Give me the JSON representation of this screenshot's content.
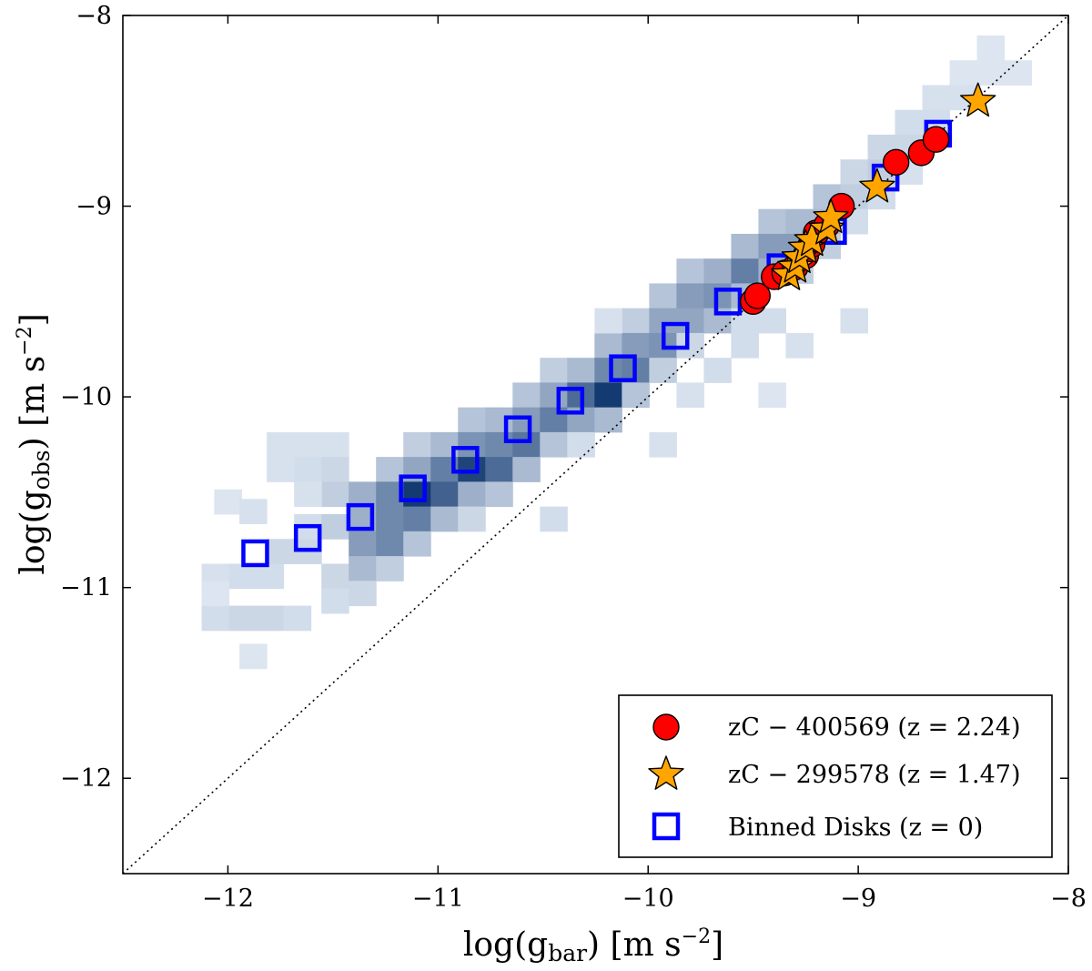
{
  "chart_data": {
    "type": "scatter",
    "xlabel": "log(g_bar) [m s^-2]",
    "ylabel": "log(g_obs) [m s^-2]",
    "xlim": [
      -12.5,
      -8
    ],
    "ylim": [
      -12.5,
      -8
    ],
    "xticks": [
      -12,
      -11,
      -10,
      -9,
      -8
    ],
    "yticks": [
      -12,
      -11,
      -10,
      -9,
      -8
    ],
    "x_tick_labels": [
      "−12",
      "−11",
      "−10",
      "−9",
      "−8"
    ],
    "y_tick_labels": [
      "−12",
      "−11",
      "−10",
      "−9",
      "−8"
    ],
    "one_to_one_line": true,
    "grid": false,
    "legend_position": "bottom-right",
    "heatmap": {
      "bin_size": 0.13,
      "color_light": "#eef5fc",
      "color_dark": "#08306b",
      "cells": [
        [
          -12.06,
          -10.94,
          0.1
        ],
        [
          -12.06,
          -11.16,
          0.12
        ],
        [
          -11.93,
          -10.94,
          0.12
        ],
        [
          -11.93,
          -11.16,
          0.15
        ],
        [
          -11.8,
          -10.94,
          0.12
        ],
        [
          -11.8,
          -11.16,
          0.15
        ],
        [
          -11.67,
          -11.16,
          0.12
        ],
        [
          -12.0,
          -10.55,
          0.08
        ],
        [
          -11.88,
          -10.6,
          0.1
        ],
        [
          -11.75,
          -10.25,
          0.1
        ],
        [
          -11.75,
          -10.38,
          0.1
        ],
        [
          -11.62,
          -10.25,
          0.1
        ],
        [
          -11.62,
          -10.38,
          0.12
        ],
        [
          -11.49,
          -10.25,
          0.1
        ],
        [
          -11.49,
          -10.38,
          0.15
        ],
        [
          -11.49,
          -10.51,
          0.2
        ],
        [
          -11.75,
          -10.81,
          0.15
        ],
        [
          -11.62,
          -10.81,
          0.15
        ],
        [
          -11.62,
          -10.68,
          0.12
        ],
        [
          -11.49,
          -10.68,
          0.2
        ],
        [
          -11.49,
          -10.94,
          0.15
        ],
        [
          -11.49,
          -11.07,
          0.12
        ],
        [
          -11.36,
          -10.51,
          0.35
        ],
        [
          -11.36,
          -10.64,
          0.35
        ],
        [
          -11.36,
          -10.77,
          0.45
        ],
        [
          -11.36,
          -10.9,
          0.3
        ],
        [
          -11.36,
          -11.03,
          0.15
        ],
        [
          -11.23,
          -10.38,
          0.25
        ],
        [
          -11.23,
          -10.51,
          0.55
        ],
        [
          -11.23,
          -10.64,
          0.55
        ],
        [
          -11.23,
          -10.77,
          0.55
        ],
        [
          -11.23,
          -10.9,
          0.2
        ],
        [
          -11.1,
          -10.25,
          0.2
        ],
        [
          -11.1,
          -10.38,
          0.4
        ],
        [
          -11.1,
          -10.51,
          0.95
        ],
        [
          -11.1,
          -10.64,
          0.6
        ],
        [
          -11.1,
          -10.77,
          0.25
        ],
        [
          -10.97,
          -10.25,
          0.3
        ],
        [
          -10.97,
          -10.38,
          0.6
        ],
        [
          -10.97,
          -10.51,
          0.75
        ],
        [
          -10.97,
          -10.64,
          0.3
        ],
        [
          -10.84,
          -10.12,
          0.25
        ],
        [
          -10.84,
          -10.25,
          0.5
        ],
        [
          -10.84,
          -10.38,
          0.9
        ],
        [
          -10.84,
          -10.51,
          0.35
        ],
        [
          -10.84,
          -10.64,
          0.15
        ],
        [
          -10.71,
          -10.12,
          0.3
        ],
        [
          -10.71,
          -10.25,
          0.55
        ],
        [
          -10.71,
          -10.38,
          0.7
        ],
        [
          -10.71,
          -10.51,
          0.25
        ],
        [
          -10.58,
          -9.99,
          0.25
        ],
        [
          -10.58,
          -10.12,
          0.45
        ],
        [
          -10.58,
          -10.25,
          0.65
        ],
        [
          -10.58,
          -10.38,
          0.3
        ],
        [
          -10.45,
          -9.86,
          0.2
        ],
        [
          -10.45,
          -9.99,
          0.4
        ],
        [
          -10.45,
          -10.12,
          0.6
        ],
        [
          -10.45,
          -10.25,
          0.25
        ],
        [
          -10.32,
          -9.86,
          0.3
        ],
        [
          -10.32,
          -9.99,
          0.7
        ],
        [
          -10.32,
          -10.12,
          0.4
        ],
        [
          -10.32,
          -10.25,
          0.12
        ],
        [
          -10.19,
          -9.73,
          0.3
        ],
        [
          -10.19,
          -9.86,
          0.55
        ],
        [
          -10.19,
          -9.99,
          0.95
        ],
        [
          -10.19,
          -10.12,
          0.3
        ],
        [
          -10.06,
          -9.6,
          0.2
        ],
        [
          -10.06,
          -9.73,
          0.45
        ],
        [
          -10.06,
          -9.86,
          0.6
        ],
        [
          -10.06,
          -9.99,
          0.25
        ],
        [
          -9.93,
          -9.47,
          0.25
        ],
        [
          -9.93,
          -9.6,
          0.4
        ],
        [
          -9.93,
          -9.73,
          0.5
        ],
        [
          -9.93,
          -9.86,
          0.2
        ],
        [
          -9.8,
          -9.34,
          0.25
        ],
        [
          -9.8,
          -9.47,
          0.45
        ],
        [
          -9.8,
          -9.6,
          0.4
        ],
        [
          -9.8,
          -9.73,
          0.15
        ],
        [
          -9.67,
          -9.34,
          0.35
        ],
        [
          -9.67,
          -9.47,
          0.5
        ],
        [
          -9.67,
          -9.6,
          0.3
        ],
        [
          -9.54,
          -9.21,
          0.3
        ],
        [
          -9.54,
          -9.34,
          0.6
        ],
        [
          -9.54,
          -9.47,
          0.3
        ],
        [
          -9.54,
          -9.6,
          0.12
        ],
        [
          -9.41,
          -9.08,
          0.25
        ],
        [
          -9.41,
          -9.21,
          0.45
        ],
        [
          -9.41,
          -9.34,
          0.35
        ],
        [
          -9.28,
          -9.08,
          0.3
        ],
        [
          -9.28,
          -9.21,
          0.45
        ],
        [
          -9.28,
          -9.34,
          0.2
        ],
        [
          -9.15,
          -8.95,
          0.25
        ],
        [
          -9.15,
          -9.08,
          0.3
        ],
        [
          -9.15,
          -9.21,
          0.2
        ],
        [
          -9.02,
          -8.82,
          0.15
        ],
        [
          -9.02,
          -8.95,
          0.2
        ],
        [
          -9.02,
          -9.08,
          0.12
        ],
        [
          -8.89,
          -8.69,
          0.15
        ],
        [
          -8.89,
          -8.82,
          0.2
        ],
        [
          -8.89,
          -8.95,
          0.12
        ],
        [
          -8.76,
          -8.56,
          0.12
        ],
        [
          -8.76,
          -8.69,
          0.15
        ],
        [
          -8.76,
          -8.82,
          0.1
        ],
        [
          -8.63,
          -8.43,
          0.1
        ],
        [
          -8.63,
          -8.56,
          0.12
        ],
        [
          -8.5,
          -8.3,
          0.08
        ],
        [
          -8.5,
          -8.43,
          0.1
        ],
        [
          -8.37,
          -8.17,
          0.08
        ],
        [
          -8.37,
          -8.3,
          0.08
        ],
        [
          -8.24,
          -8.3,
          0.08
        ],
        [
          -10.45,
          -10.64,
          0.12
        ],
        [
          -10.19,
          -9.6,
          0.1
        ],
        [
          -9.93,
          -10.25,
          0.1
        ],
        [
          -9.67,
          -9.86,
          0.12
        ],
        [
          -9.54,
          -9.73,
          0.12
        ],
        [
          -9.41,
          -9.6,
          0.12
        ],
        [
          -9.28,
          -9.73,
          0.1
        ],
        [
          -9.02,
          -9.6,
          0.1
        ],
        [
          -9.8,
          -9.99,
          0.1
        ],
        [
          -9.41,
          -9.99,
          0.08
        ],
        [
          -12.06,
          -11.03,
          0.08
        ],
        [
          -11.88,
          -11.36,
          0.08
        ],
        [
          -11.62,
          -10.51,
          0.1
        ]
      ]
    },
    "series": [
      {
        "name": "zC − 400569 (z = 2.24)",
        "marker": "circle",
        "color": "#ff0000",
        "x": [
          -9.5,
          -9.48,
          -9.4,
          -9.35,
          -9.3,
          -9.25,
          -9.22,
          -9.2,
          -9.15,
          -9.08,
          -8.82,
          -8.7,
          -8.63
        ],
        "y": [
          -9.5,
          -9.47,
          -9.37,
          -9.35,
          -9.32,
          -9.26,
          -9.2,
          -9.14,
          -9.1,
          -9.0,
          -8.77,
          -8.72,
          -8.65
        ]
      },
      {
        "name": "zC − 299578 (z = 1.47)",
        "marker": "star",
        "color": "#ffa500",
        "x": [
          -9.33,
          -9.3,
          -9.28,
          -9.25,
          -9.22,
          -9.15,
          -9.13,
          -8.91,
          -8.43
        ],
        "y": [
          -9.36,
          -9.32,
          -9.27,
          -9.22,
          -9.18,
          -9.12,
          -9.06,
          -8.9,
          -8.45
        ]
      },
      {
        "name": "Binned Disks (z = 0)",
        "marker": "square-open",
        "color": "#0000ff",
        "x": [
          -11.87,
          -11.62,
          -11.37,
          -11.12,
          -10.87,
          -10.62,
          -10.37,
          -10.12,
          -9.87,
          -9.62,
          -9.37,
          -9.12,
          -8.87,
          -8.62
        ],
        "y": [
          -10.82,
          -10.74,
          -10.63,
          -10.48,
          -10.33,
          -10.17,
          -10.02,
          -9.85,
          -9.68,
          -9.5,
          -9.32,
          -9.13,
          -8.85,
          -8.62
        ]
      }
    ]
  }
}
